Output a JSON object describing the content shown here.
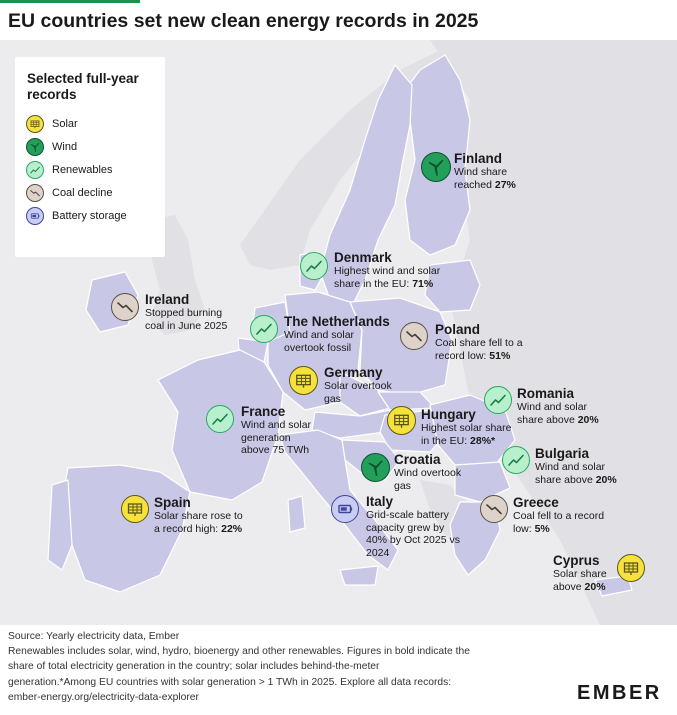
{
  "title": "EU countries set new clean energy records in 2025",
  "legend": {
    "title": "Selected full-year records",
    "items": [
      {
        "icon": "solar",
        "label": "Solar"
      },
      {
        "icon": "wind",
        "label": "Wind"
      },
      {
        "icon": "renewables",
        "label": "Renewables"
      },
      {
        "icon": "coal",
        "label": "Coal decline"
      },
      {
        "icon": "battery",
        "label": "Battery storage"
      }
    ]
  },
  "countries": [
    {
      "name": "Finland",
      "icon": "wind",
      "lines": [
        "Wind share",
        "reached **27%**"
      ]
    },
    {
      "name": "Denmark",
      "icon": "renewables",
      "lines": [
        "Highest wind and solar",
        "share in the EU: **71%**"
      ]
    },
    {
      "name": "Ireland",
      "icon": "coal",
      "lines": [
        "Stopped burning",
        "coal in June 2025"
      ]
    },
    {
      "name": "The Netherlands",
      "icon": "renewables",
      "lines": [
        "Wind and solar",
        "overtook fossil"
      ]
    },
    {
      "name": "Poland",
      "icon": "coal",
      "lines": [
        "Coal share fell to a",
        "record low: **51%**"
      ]
    },
    {
      "name": "Germany",
      "icon": "solar",
      "lines": [
        "Solar overtook",
        "gas"
      ]
    },
    {
      "name": "Romania",
      "icon": "renewables",
      "lines": [
        "Wind and solar",
        "share above **20%**"
      ]
    },
    {
      "name": "France",
      "icon": "renewables",
      "lines": [
        "Wind and solar",
        "generation",
        "above 75 TWh"
      ]
    },
    {
      "name": "Hungary",
      "icon": "solar",
      "lines": [
        "Highest solar share",
        "in the EU: **28%***"
      ]
    },
    {
      "name": "Croatia",
      "icon": "wind",
      "lines": [
        "Wind overtook",
        "gas"
      ]
    },
    {
      "name": "Bulgaria",
      "icon": "renewables",
      "lines": [
        "Wind and solar",
        "share above **20%**"
      ]
    },
    {
      "name": "Spain",
      "icon": "solar",
      "lines": [
        "Solar share rose to",
        "a record high: **22%**"
      ]
    },
    {
      "name": "Italy",
      "icon": "battery",
      "lines": [
        "Grid-scale battery",
        "capacity grew by",
        "40% by Oct 2025 vs",
        "2024"
      ]
    },
    {
      "name": "Greece",
      "icon": "coal",
      "lines": [
        "Coal fell to a record",
        "low: **5%**"
      ]
    },
    {
      "name": "Cyprus",
      "icon": "solar",
      "lines": [
        "Solar share",
        "above **20%**"
      ]
    }
  ],
  "footer": [
    "Source: Yearly electricity data, Ember",
    "Renewables includes solar, wind, hydro, bioenergy and other renewables. Figures in bold indicate the",
    "share of total electricity generation in the country; solar includes behind-the-meter",
    "generation.*Among EU countries with solar generation > 1 TWh in 2025. Explore all data records:",
    "ember-energy.org/electricity-data-explorer"
  ],
  "brand": "EMBER",
  "colors": {
    "land": "#c9c7e6",
    "border": "#ffffff",
    "sea": "#ececef",
    "accent": "#1e8f4e"
  }
}
